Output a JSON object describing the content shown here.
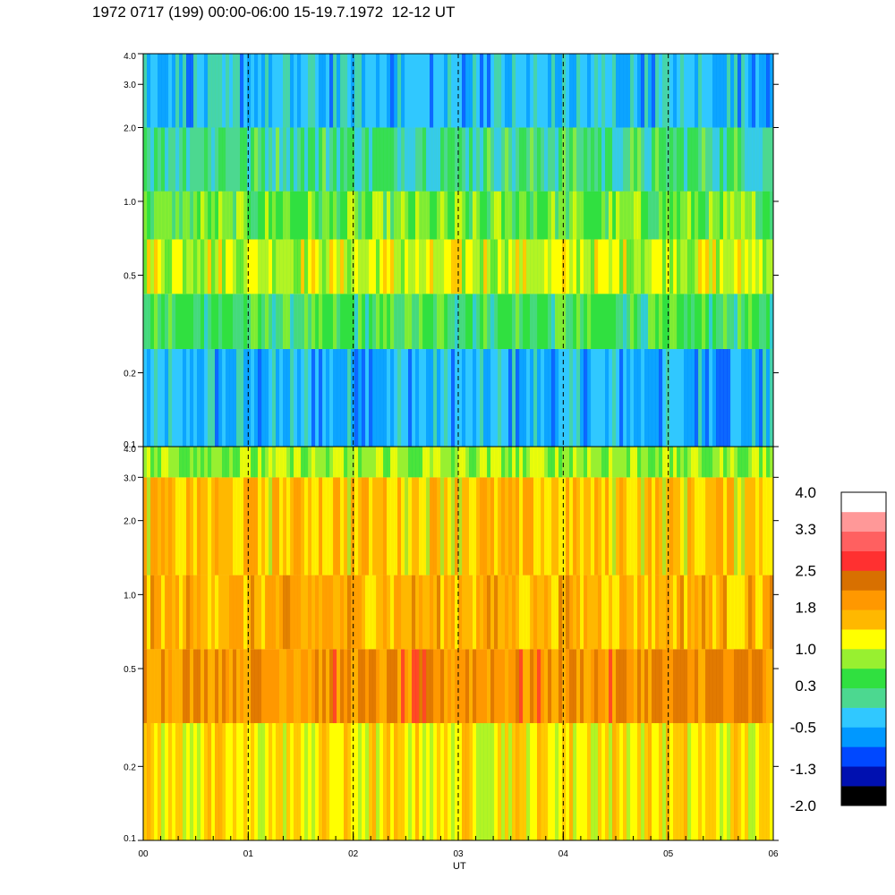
{
  "title": "1972 0717 (199) 00:00-06:00 15-19.7.1972  12-12 UT",
  "chart_data": [
    {
      "type": "heatmap",
      "panel": "top",
      "y_scale": "log",
      "ylim": [
        0.1,
        4.0
      ],
      "y_ticks": [
        "4.0",
        "3.0",
        "2.0",
        "1.0",
        "0.5",
        "0.2",
        "0.1"
      ],
      "y_tick_values": [
        4.0,
        3.0,
        2.0,
        1.0,
        0.5,
        0.2,
        0.1
      ],
      "x_ticks": [
        "00",
        "01",
        "02",
        "03",
        "04",
        "05",
        "06"
      ],
      "x_tick_values": [
        0,
        1,
        2,
        3,
        4,
        5,
        6
      ],
      "xlim": [
        0,
        6
      ],
      "dashed_hours": [
        1,
        2,
        3,
        4,
        5
      ],
      "bands": [
        {
          "y": [
            0.1,
            0.25
          ],
          "level": -0.5
        },
        {
          "y": [
            0.25,
            0.42
          ],
          "level": 0.3
        },
        {
          "y": [
            0.42,
            0.7
          ],
          "level": 1.0
        },
        {
          "y": [
            0.7,
            1.1
          ],
          "level": 0.6
        },
        {
          "y": [
            1.1,
            2.0
          ],
          "level": 0.2
        },
        {
          "y": [
            2.0,
            4.0
          ],
          "level": -0.4
        }
      ]
    },
    {
      "type": "heatmap",
      "panel": "bottom",
      "y_scale": "log",
      "ylim": [
        0.1,
        4.0
      ],
      "y_ticks": [
        "4.0",
        "3.0",
        "2.0",
        "1.0",
        "0.5",
        "0.2",
        "0.1"
      ],
      "y_tick_values": [
        4.0,
        3.0,
        2.0,
        1.0,
        0.5,
        0.2,
        0.1
      ],
      "x_ticks": [
        "00",
        "01",
        "02",
        "03",
        "04",
        "05",
        "06"
      ],
      "x_tick_values": [
        0,
        1,
        2,
        3,
        4,
        5,
        6
      ],
      "xlim": [
        0,
        6
      ],
      "xlabel": "UT",
      "dashed_hours": [
        1,
        2,
        3,
        4,
        5
      ],
      "bands": [
        {
          "y": [
            0.1,
            0.3
          ],
          "level": 1.3
        },
        {
          "y": [
            0.3,
            0.6
          ],
          "level": 2.0
        },
        {
          "y": [
            0.6,
            1.2
          ],
          "level": 1.7
        },
        {
          "y": [
            1.2,
            3.0
          ],
          "level": 1.5
        },
        {
          "y": [
            3.0,
            4.0
          ],
          "level": 0.8
        }
      ]
    }
  ],
  "colorbar": {
    "labels": [
      "4.0",
      "3.3",
      "2.5",
      "1.8",
      "1.0",
      "0.3",
      "-0.5",
      "-1.3",
      "-2.0"
    ],
    "label_values": [
      4.0,
      3.3,
      2.5,
      1.8,
      1.0,
      0.3,
      -0.5,
      -1.3,
      -2.0
    ],
    "min": -2.0,
    "max": 4.0,
    "colors": [
      "#000000",
      "#0010b0",
      "#0048ff",
      "#0098ff",
      "#30c8ff",
      "#4cd890",
      "#30e040",
      "#98f030",
      "#ffff00",
      "#ffb800",
      "#ff9800",
      "#d87000",
      "#ff3030",
      "#ff6060",
      "#ff9898",
      "#ffffff"
    ]
  }
}
